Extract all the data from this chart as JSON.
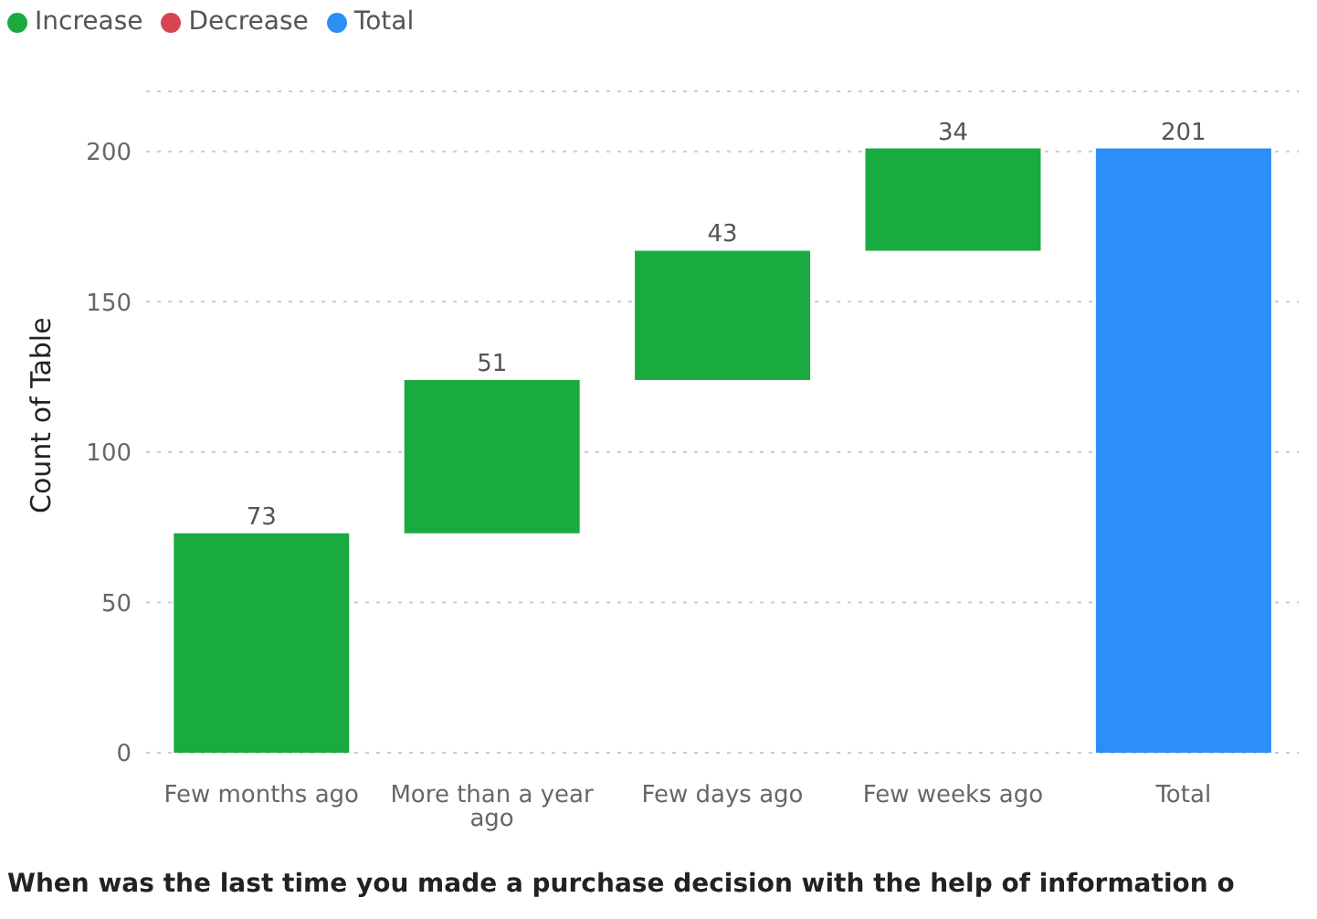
{
  "chart_data": {
    "type": "bar",
    "xlabel": "When was the last time you made a purchase decision with the help of information o",
    "ylabel": "Count of Table",
    "categories": [
      "Few months ago",
      "More than a year ago",
      "Few days ago",
      "Few weeks ago",
      "Total"
    ],
    "series": [
      {
        "name": "Increase",
        "color": "#1aab40",
        "values": [
          73,
          51,
          43,
          34,
          null
        ],
        "base": [
          0,
          73,
          124,
          167,
          null
        ]
      },
      {
        "name": "Decrease",
        "color": "#d64550",
        "values": [
          null,
          null,
          null,
          null,
          null
        ]
      },
      {
        "name": "Total",
        "color": "#2b8ff7",
        "values": [
          null,
          null,
          null,
          null,
          201
        ],
        "base": [
          null,
          null,
          null,
          null,
          0
        ]
      }
    ],
    "ylim": [
      0,
      220
    ],
    "yticks": [
      0,
      50,
      100,
      150,
      200
    ],
    "grid": "y",
    "legend": "top left",
    "data_labels": true
  }
}
